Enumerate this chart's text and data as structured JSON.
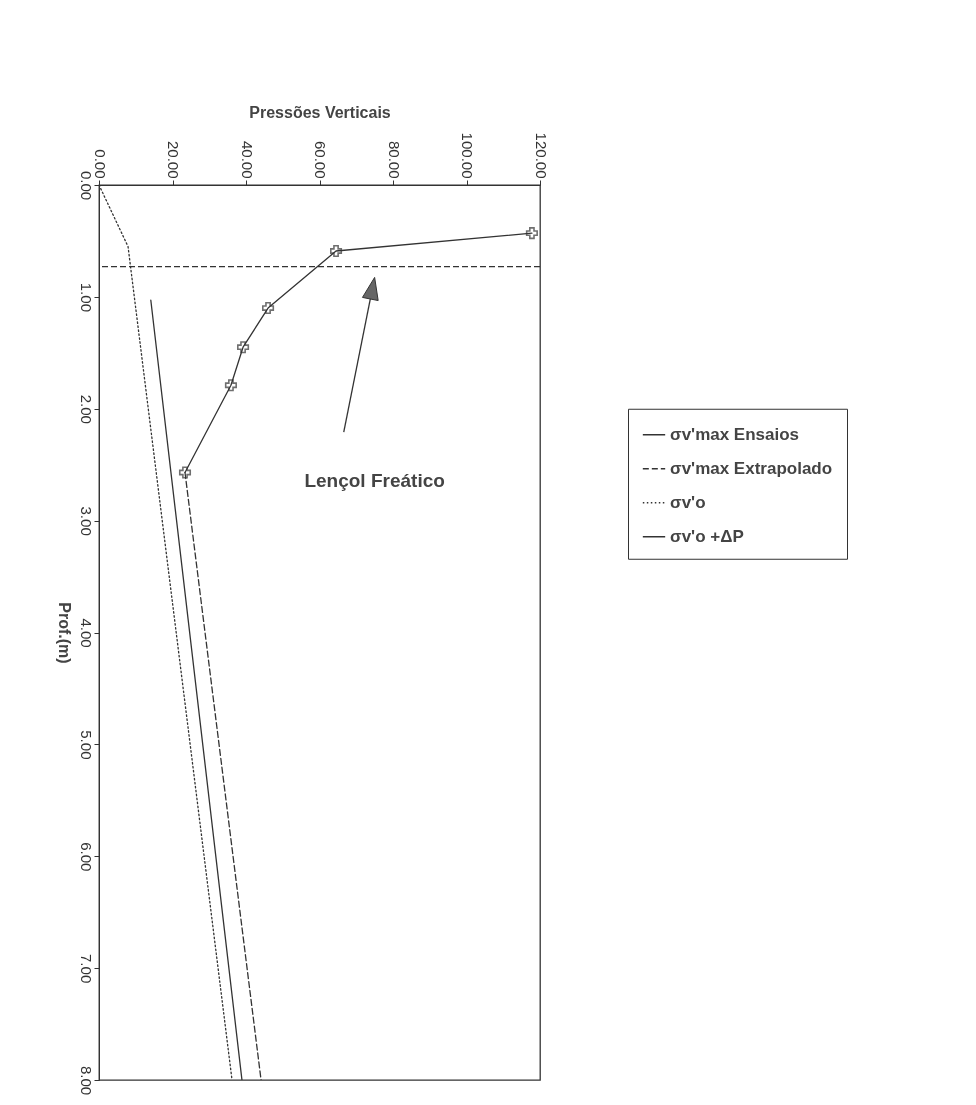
{
  "chart_data": {
    "type": "line",
    "xlabel": "Pressões Verticais",
    "ylabel": "Prof.(m)",
    "xlim": [
      0,
      120
    ],
    "xticks": [
      {
        "value": 0,
        "label": "0.00"
      },
      {
        "value": 20,
        "label": "20.00"
      },
      {
        "value": 40,
        "label": "40.00"
      },
      {
        "value": 60,
        "label": "60.00"
      },
      {
        "value": 80,
        "label": "80.00"
      },
      {
        "value": 100,
        "label": "100.00"
      },
      {
        "value": 120,
        "label": "120.00"
      }
    ],
    "ylim": [
      8,
      0
    ],
    "yticks": [
      {
        "value": 0,
        "label": "0.00"
      },
      {
        "value": 1,
        "label": "1.00"
      },
      {
        "value": 2,
        "label": "2.00"
      },
      {
        "value": 3,
        "label": "3.00"
      },
      {
        "value": 4,
        "label": "4.00"
      },
      {
        "value": 5,
        "label": "5.00"
      },
      {
        "value": 6,
        "label": "6.00"
      },
      {
        "value": 7,
        "label": "7.00"
      },
      {
        "value": 8,
        "label": "8.00"
      }
    ],
    "grid": false,
    "legend": "right",
    "series": [
      {
        "name": "σv'max Ensaios",
        "color": "#333333",
        "marker": "cross",
        "line_style": "solid",
        "x": [
          117.8,
          64.5,
          46,
          39.2,
          35.9,
          23.4
        ],
        "values": [
          0.43,
          0.59,
          1.1,
          1.45,
          1.79,
          2.57
        ]
      },
      {
        "name": "σv'max Extrapolado",
        "color": "#333333",
        "line_style": "dashed",
        "x": [
          23.4,
          44.1
        ],
        "values": [
          2.57,
          8
        ]
      },
      {
        "name": "σv'o",
        "color": "#333333",
        "line_style": "dotted",
        "x": [
          0,
          7.9,
          36.2
        ],
        "values": [
          0,
          0.55,
          8
        ]
      },
      {
        "name": "σv'o +ΔP",
        "color": "#333333",
        "line_style": "solid",
        "x": [
          14.1,
          38.9
        ],
        "values": [
          1.03,
          8
        ]
      }
    ],
    "ref_lines": [
      {
        "axis": "y",
        "value": 0.73,
        "line_style": "dashed",
        "color": "#333333"
      }
    ],
    "annotations": [
      "Lençol Freático"
    ]
  }
}
